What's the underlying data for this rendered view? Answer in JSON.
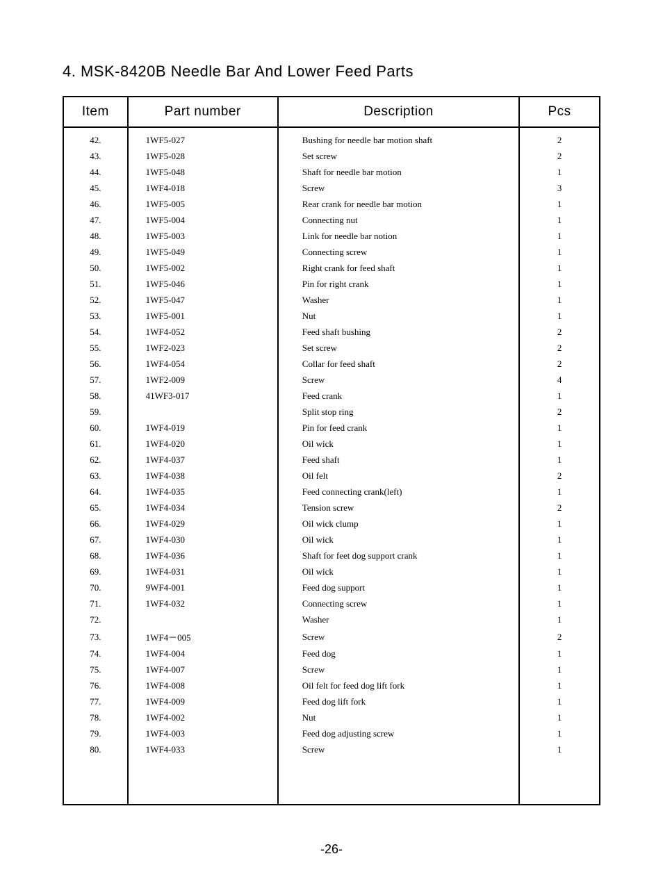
{
  "title": "4. MSK-8420B  Needle Bar And Lower Feed Parts",
  "headers": {
    "item": "Item",
    "part": "Part number",
    "desc": "Description",
    "pcs": "Pcs"
  },
  "rows": [
    {
      "item": "42.",
      "part": "1WF5-027",
      "desc": "Bushing for needle bar motion shaft",
      "pcs": "2"
    },
    {
      "item": "43.",
      "part": "1WF5-028",
      "desc": "Set screw",
      "pcs": "2"
    },
    {
      "item": "44.",
      "part": "1WF5-048",
      "desc": "Shaft for needle bar motion",
      "pcs": "1"
    },
    {
      "item": "45.",
      "part": "1WF4-018",
      "desc": "Screw",
      "pcs": "3"
    },
    {
      "item": "46.",
      "part": "1WF5-005",
      "desc": "Rear crank for needle bar motion",
      "pcs": "1"
    },
    {
      "item": "47.",
      "part": "1WF5-004",
      "desc": "Connecting nut",
      "pcs": "1"
    },
    {
      "item": "48.",
      "part": "1WF5-003",
      "desc": "Link for needle bar notion",
      "pcs": "1"
    },
    {
      "item": "49.",
      "part": "1WF5-049",
      "desc": "Connecting screw",
      "pcs": "1"
    },
    {
      "item": "50.",
      "part": "1WF5-002",
      "desc": "Right crank for feed shaft",
      "pcs": "1"
    },
    {
      "item": "51.",
      "part": "1WF5-046",
      "desc": "Pin for right crank",
      "pcs": "1"
    },
    {
      "item": "52.",
      "part": "1WF5-047",
      "desc": "Washer",
      "pcs": "1"
    },
    {
      "item": "53.",
      "part": "1WF5-001",
      "desc": "Nut",
      "pcs": "1"
    },
    {
      "item": "54.",
      "part": "1WF4-052",
      "desc": "Feed shaft bushing",
      "pcs": "2"
    },
    {
      "item": "55.",
      "part": "1WF2-023",
      "desc": "Set screw",
      "pcs": "2"
    },
    {
      "item": "56.",
      "part": "1WF4-054",
      "desc": "Collar for feed shaft",
      "pcs": "2"
    },
    {
      "item": "57.",
      "part": "1WF2-009",
      "desc": "Screw",
      "pcs": "4"
    },
    {
      "item": "58.",
      "part": "41WF3-017",
      "desc": "Feed crank",
      "pcs": "1"
    },
    {
      "item": "59.",
      "part": "",
      "desc": "Split stop ring",
      "pcs": "2"
    },
    {
      "item": "60.",
      "part": "1WF4-019",
      "desc": "Pin for feed crank",
      "pcs": "1"
    },
    {
      "item": "61.",
      "part": "1WF4-020",
      "desc": "Oil wick",
      "pcs": "1"
    },
    {
      "item": "62.",
      "part": "1WF4-037",
      "desc": "Feed shaft",
      "pcs": "1"
    },
    {
      "item": "63.",
      "part": "1WF4-038",
      "desc": "Oil felt",
      "pcs": "2"
    },
    {
      "item": "64.",
      "part": "1WF4-035",
      "desc": "Feed connecting crank(left)",
      "pcs": "1"
    },
    {
      "item": "65.",
      "part": "1WF4-034",
      "desc": "Tension screw",
      "pcs": "2"
    },
    {
      "item": "66.",
      "part": "1WF4-029",
      "desc": "Oil wick clump",
      "pcs": "1"
    },
    {
      "item": "67.",
      "part": "1WF4-030",
      "desc": "Oil wick",
      "pcs": "1"
    },
    {
      "item": "68.",
      "part": "1WF4-036",
      "desc": "Shaft for feet dog support crank",
      "pcs": "1"
    },
    {
      "item": "69.",
      "part": "1WF4-031",
      "desc": "Oil wick",
      "pcs": "1"
    },
    {
      "item": "70.",
      "part": "9WF4-001",
      "desc": "Feed dog support",
      "pcs": "1"
    },
    {
      "item": "71.",
      "part": "1WF4-032",
      "desc": "Connecting screw",
      "pcs": "1"
    },
    {
      "item": "72.",
      "part": "",
      "desc": "Washer",
      "pcs": "1"
    },
    {
      "item": "73.",
      "part": "1WF4－005",
      "desc": "Screw",
      "pcs": "2"
    },
    {
      "item": "74.",
      "part": "1WF4-004",
      "desc": "Feed dog",
      "pcs": "1"
    },
    {
      "item": "75.",
      "part": "1WF4-007",
      "desc": "Screw",
      "pcs": "1"
    },
    {
      "item": "76.",
      "part": "1WF4-008",
      "desc": "Oil felt for feed dog lift fork",
      "pcs": "1"
    },
    {
      "item": "77.",
      "part": "1WF4-009",
      "desc": "Feed dog lift fork",
      "pcs": "1"
    },
    {
      "item": "78.",
      "part": "1WF4-002",
      "desc": "Nut",
      "pcs": "1"
    },
    {
      "item": "79.",
      "part": "1WF4-003",
      "desc": "Feed dog adjusting screw",
      "pcs": "1"
    },
    {
      "item": "80.",
      "part": "1WF4-033",
      "desc": "Screw",
      "pcs": "1"
    }
  ],
  "pageNumber": "-26-"
}
